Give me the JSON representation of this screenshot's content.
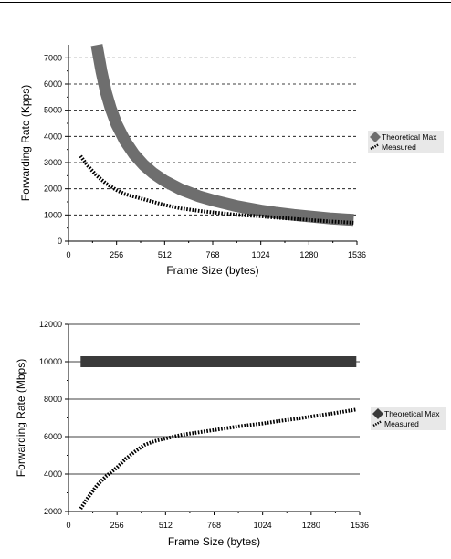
{
  "chart_data": [
    {
      "type": "line",
      "xlabel": "Frame Size (bytes)",
      "ylabel": "Forwarding Rate (Kpps)",
      "xlim": [
        0,
        1536
      ],
      "ylim": [
        0,
        7500
      ],
      "xticks": [
        0,
        256,
        512,
        768,
        1024,
        1280,
        1536
      ],
      "yticks": [
        0,
        1000,
        2000,
        3000,
        4000,
        5000,
        6000,
        7000
      ],
      "grid": "horizontal-dashed",
      "legend_position": "right",
      "series": [
        {
          "name": "Theoretical Max",
          "style": "thick-solid",
          "color": "#6e6e6e",
          "x": [
            150,
            175,
            200,
            225,
            256,
            300,
            350,
            400,
            450,
            512,
            600,
            700,
            768,
            900,
            1024,
            1100,
            1200,
            1300,
            1400,
            1518
          ],
          "y": [
            7490,
            6500,
            5680,
            5060,
            4460,
            3840,
            3310,
            2910,
            2600,
            2300,
            1970,
            1700,
            1560,
            1330,
            1170,
            1090,
            1000,
            930,
            860,
            810
          ]
        },
        {
          "name": "Measured",
          "style": "dotted",
          "color": "#000000",
          "x": [
            64,
            100,
            150,
            200,
            256,
            300,
            350,
            400,
            450,
            512,
            600,
            700,
            768,
            900,
            1024,
            1100,
            1200,
            1300,
            1400,
            1518
          ],
          "y": [
            3250,
            2900,
            2500,
            2200,
            1950,
            1800,
            1700,
            1600,
            1500,
            1380,
            1250,
            1150,
            1100,
            1000,
            950,
            900,
            850,
            800,
            750,
            700
          ]
        }
      ]
    },
    {
      "type": "line",
      "xlabel": "Frame Size (bytes)",
      "ylabel": "Forwarding Rate (Mbps)",
      "xlim": [
        0,
        1536
      ],
      "ylim": [
        2000,
        12000
      ],
      "xticks": [
        0,
        256,
        512,
        768,
        1024,
        1280,
        1536
      ],
      "yticks": [
        2000,
        4000,
        6000,
        8000,
        10000,
        12000
      ],
      "grid": "horizontal-solid",
      "legend_position": "right",
      "series": [
        {
          "name": "Theoretical Max",
          "style": "thick-solid",
          "color": "#3a3a3a",
          "x": [
            64,
            1518
          ],
          "y": [
            10000,
            10000
          ]
        },
        {
          "name": "Measured",
          "style": "dotted",
          "color": "#000000",
          "x": [
            64,
            100,
            150,
            200,
            256,
            300,
            350,
            400,
            450,
            512,
            600,
            700,
            800,
            900,
            1024,
            1100,
            1200,
            1300,
            1400,
            1518
          ],
          "y": [
            2150,
            2700,
            3400,
            3900,
            4350,
            4800,
            5200,
            5550,
            5750,
            5900,
            6100,
            6250,
            6400,
            6550,
            6700,
            6820,
            6950,
            7100,
            7250,
            7450
          ]
        }
      ]
    }
  ]
}
